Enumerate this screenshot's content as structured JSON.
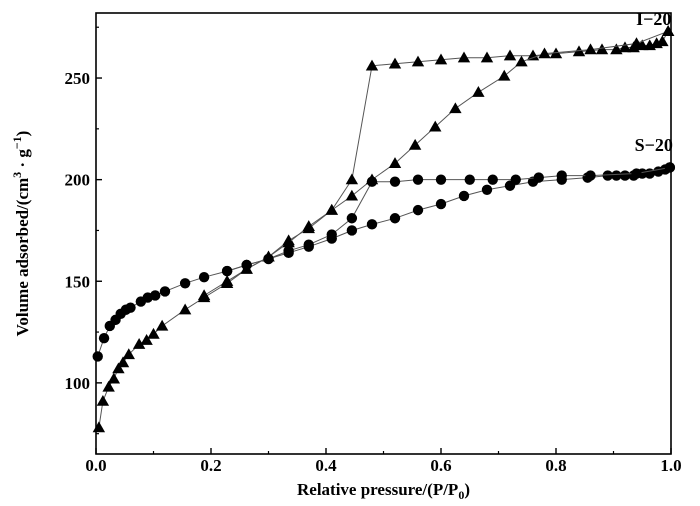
{
  "chart_data": {
    "type": "scatter",
    "title": "",
    "xlabel": "Relative pressure/(P/P",
    "xlabel_sub": "0",
    "xlabel_tail": ")",
    "ylabel": "Volume adsorbed/(cm",
    "ylabel_sup1": "3",
    "ylabel_mid": " · g",
    "ylabel_sup2": "−1",
    "ylabel_tail": ")",
    "xlim": [
      0.0,
      1.0
    ],
    "ylim": [
      65,
      282
    ],
    "x_ticks": [
      0.0,
      0.2,
      0.4,
      0.6,
      0.8,
      1.0
    ],
    "x_tick_labels": [
      "0.0",
      "0.2",
      "0.4",
      "0.6",
      "0.8",
      "1.0"
    ],
    "y_ticks": [
      100,
      150,
      200,
      250
    ],
    "y_tick_labels": [
      "100",
      "150",
      "200",
      "250"
    ],
    "grid": false,
    "series": [
      {
        "name": "I−20",
        "marker": "triangle",
        "color": "#000000",
        "label_at": [
          0.97,
          276
        ],
        "adsorption": {
          "x": [
            0.005,
            0.012,
            0.022,
            0.031,
            0.039,
            0.047,
            0.057,
            0.075,
            0.088,
            0.1,
            0.115,
            0.155,
            0.188,
            0.228,
            0.262,
            0.3,
            0.335,
            0.37,
            0.41,
            0.445,
            0.48,
            0.52,
            0.56,
            0.6,
            0.64,
            0.68,
            0.72,
            0.76,
            0.8,
            0.84,
            0.88,
            0.905,
            0.92,
            0.935,
            0.95,
            0.963,
            0.975,
            0.985,
            0.995
          ],
          "y": [
            78,
            91,
            98,
            102,
            107,
            110,
            114,
            119,
            121,
            124,
            128,
            136,
            142,
            149,
            156,
            162,
            170,
            176,
            185,
            200,
            256,
            257,
            258,
            259,
            260,
            260,
            261,
            261,
            262,
            263,
            264,
            264,
            265,
            265,
            266,
            266,
            267,
            268,
            273
          ]
        },
        "desorption": {
          "x": [
            0.995,
            0.94,
            0.86,
            0.78,
            0.74,
            0.71,
            0.665,
            0.625,
            0.59,
            0.555,
            0.52,
            0.48,
            0.445,
            0.41,
            0.37,
            0.335,
            0.3,
            0.262,
            0.228,
            0.188
          ],
          "y": [
            273,
            267,
            264,
            262,
            258,
            251,
            243,
            235,
            226,
            217,
            208,
            200,
            192,
            185,
            177,
            169,
            162,
            156,
            150,
            143
          ]
        }
      },
      {
        "name": "S−20",
        "marker": "circle",
        "color": "#000000",
        "label_at": [
          0.97,
          214
        ],
        "adsorption": {
          "x": [
            0.003,
            0.014,
            0.024,
            0.034,
            0.043,
            0.052,
            0.06,
            0.078,
            0.09,
            0.103,
            0.12,
            0.155,
            0.188,
            0.228,
            0.262,
            0.3,
            0.335,
            0.37,
            0.41,
            0.445,
            0.48,
            0.52,
            0.56,
            0.6,
            0.64,
            0.68,
            0.72,
            0.76,
            0.81,
            0.855,
            0.89,
            0.905,
            0.92,
            0.935,
            0.95,
            0.963,
            0.978,
            0.99,
            0.998
          ],
          "y": [
            113,
            122,
            128,
            131,
            134,
            136,
            137,
            140,
            142,
            143,
            145,
            149,
            152,
            155,
            158,
            161,
            164,
            167,
            171,
            175,
            178,
            181,
            185,
            188,
            192,
            195,
            197,
            199,
            200,
            201,
            202,
            202,
            202,
            202,
            203,
            203,
            204,
            205,
            206
          ]
        },
        "desorption": {
          "x": [
            0.998,
            0.94,
            0.86,
            0.81,
            0.77,
            0.73,
            0.69,
            0.65,
            0.6,
            0.56,
            0.52,
            0.48,
            0.445,
            0.41,
            0.37,
            0.335,
            0.3,
            0.262,
            0.228
          ],
          "y": [
            206,
            203,
            202,
            202,
            201,
            200,
            200,
            200,
            200,
            200,
            199,
            199,
            181,
            173,
            168,
            165,
            161,
            158,
            155
          ]
        }
      }
    ]
  }
}
